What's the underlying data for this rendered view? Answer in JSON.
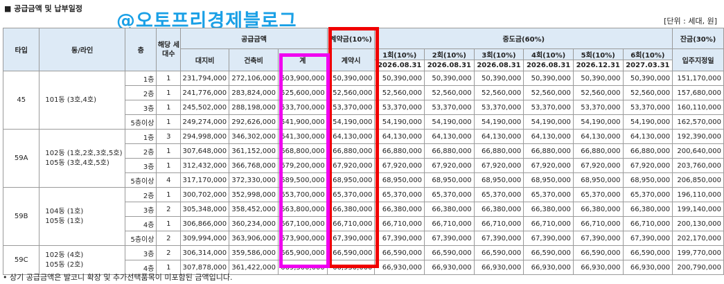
{
  "title": "■ 공급금액 및 납부일정",
  "watermark": "@오토프리경제블로그",
  "unit": "[단위 : 세대, 원]",
  "footnote": "• 상기 공급금액은 발코니 확장 및 추가선택품목이 미포함된 금액입니다.",
  "headers": {
    "type": "타입",
    "dong": "동/라인",
    "floor": "층",
    "units": "해당 세대수",
    "supply": "공급금액",
    "land": "대지비",
    "building": "건축비",
    "total": "계",
    "contract": "계약금(10%)",
    "contract_sub": "계약시",
    "middle": "중도금(60%)",
    "balance": "잔금(30%)",
    "balance_sub": "입주지정일",
    "installments": [
      {
        "label": "1회(10%)",
        "date": "2026.08.31"
      },
      {
        "label": "2회(10%)",
        "date": "2026.08.31"
      },
      {
        "label": "3회(10%)",
        "date": "2026.08.31"
      },
      {
        "label": "4회(10%)",
        "date": "2026.08.31"
      },
      {
        "label": "5회(10%)",
        "date": "2026.12.31"
      },
      {
        "label": "6회(10%)",
        "date": "2027.03.31"
      }
    ]
  },
  "groups": [
    {
      "type": "45",
      "dong": "101동 (3호,4호)",
      "rows": [
        {
          "floor": "1층",
          "units": "1",
          "land": "231,794,000",
          "building": "272,106,000",
          "total": "503,900,000",
          "contract": "50,390,000",
          "mid": "50,390,000",
          "balance": "151,170,000"
        },
        {
          "floor": "2층",
          "units": "1",
          "land": "241,776,000",
          "building": "283,824,000",
          "total": "525,600,000",
          "contract": "52,560,000",
          "mid": "52,560,000",
          "balance": "157,680,000"
        },
        {
          "floor": "3층",
          "units": "1",
          "land": "245,502,000",
          "building": "288,198,000",
          "total": "533,700,000",
          "contract": "53,370,000",
          "mid": "53,370,000",
          "balance": "160,110,000"
        },
        {
          "floor": "5층이상",
          "units": "1",
          "land": "249,274,000",
          "building": "292,626,000",
          "total": "541,900,000",
          "contract": "54,190,000",
          "mid": "54,190,000",
          "balance": "162,570,000"
        }
      ]
    },
    {
      "type": "59A",
      "dong": "102동 (1호,2호,3호,5호)\n105동 (3호,4호,5호)",
      "rows": [
        {
          "floor": "1층",
          "units": "3",
          "land": "294,998,000",
          "building": "346,302,000",
          "total": "641,300,000",
          "contract": "64,130,000",
          "mid": "64,130,000",
          "balance": "192,390,000"
        },
        {
          "floor": "2층",
          "units": "1",
          "land": "307,648,000",
          "building": "361,152,000",
          "total": "668,800,000",
          "contract": "66,880,000",
          "mid": "66,880,000",
          "balance": "200,640,000"
        },
        {
          "floor": "3층",
          "units": "1",
          "land": "312,432,000",
          "building": "366,768,000",
          "total": "679,200,000",
          "contract": "67,920,000",
          "mid": "67,920,000",
          "balance": "203,760,000"
        },
        {
          "floor": "5층이상",
          "units": "4",
          "land": "317,170,000",
          "building": "372,330,000",
          "total": "689,500,000",
          "contract": "68,950,000",
          "mid": "68,950,000",
          "balance": "206,850,000"
        }
      ]
    },
    {
      "type": "59B",
      "dong": "104동 (1호)\n105동 (1호)",
      "rows": [
        {
          "floor": "2층",
          "units": "1",
          "land": "300,702,000",
          "building": "352,998,000",
          "total": "653,700,000",
          "contract": "65,370,000",
          "mid": "65,370,000",
          "balance": "196,110,000"
        },
        {
          "floor": "3층",
          "units": "2",
          "land": "305,348,000",
          "building": "358,452,000",
          "total": "663,800,000",
          "contract": "66,380,000",
          "mid": "66,380,000",
          "balance": "199,140,000"
        },
        {
          "floor": "4층",
          "units": "1",
          "land": "306,866,000",
          "building": "360,234,000",
          "total": "667,100,000",
          "contract": "66,710,000",
          "mid": "66,710,000",
          "balance": "200,130,000"
        },
        {
          "floor": "5층이상",
          "units": "2",
          "land": "309,994,000",
          "building": "363,906,000",
          "total": "673,900,000",
          "contract": "67,390,000",
          "mid": "67,390,000",
          "balance": "202,170,000"
        }
      ]
    },
    {
      "type": "59C",
      "dong": "102동 (4호)\n105동 (2호)",
      "rows": [
        {
          "floor": "3층",
          "units": "2",
          "land": "306,314,000",
          "building": "359,586,000",
          "total": "665,900,000",
          "contract": "66,590,000",
          "mid": "66,590,000",
          "balance": "199,770,000"
        },
        {
          "floor": "4층",
          "units": "1",
          "land": "307,878,000",
          "building": "361,422,000",
          "total": "669,300,000",
          "contract": "66,930,000",
          "mid": "66,930,000",
          "balance": "200,790,000"
        }
      ]
    }
  ],
  "highlight_colors": {
    "contract_box": "#f00000",
    "total_box": "#f000f0",
    "header_bg": "#ddeaf6",
    "watermark": "#1aa0e6"
  }
}
